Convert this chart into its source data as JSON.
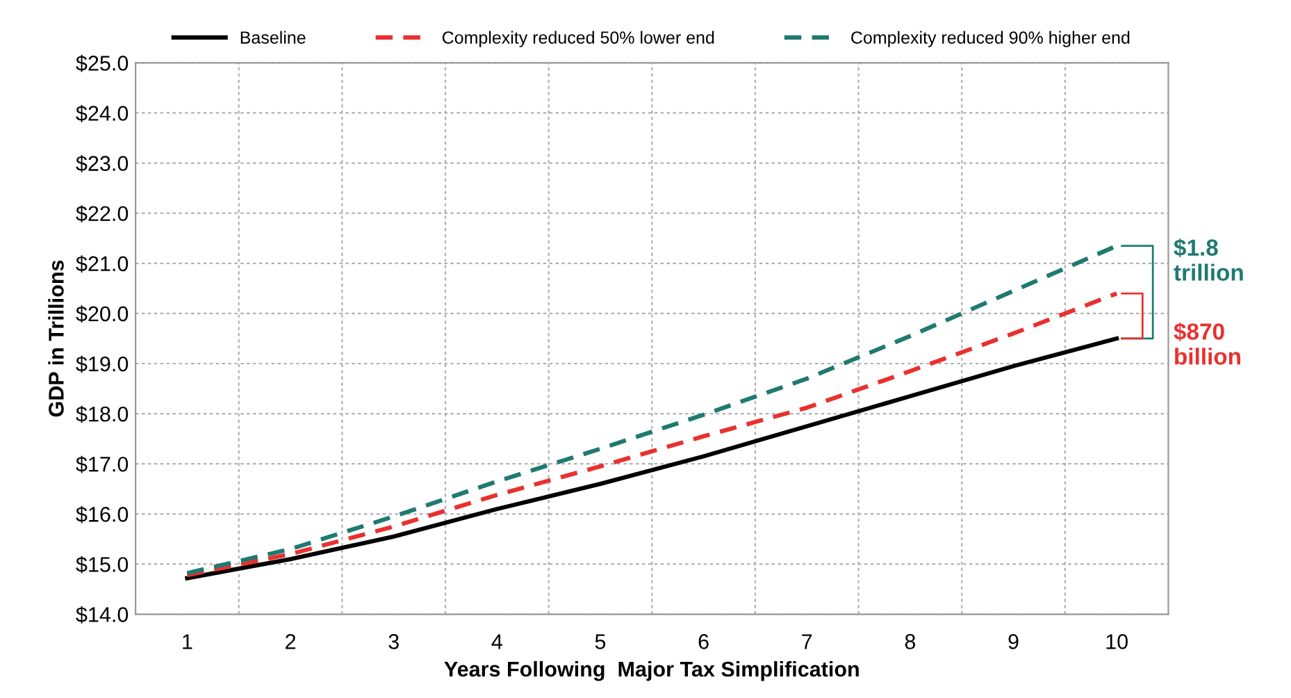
{
  "chart_data": {
    "type": "line",
    "xlabel": "Years Following  Major Tax Simplification",
    "ylabel": "GDP in Trillions",
    "categories": [
      "1",
      "2",
      "3",
      "4",
      "5",
      "6",
      "7",
      "8",
      "9",
      "10"
    ],
    "series": [
      {
        "name": "Baseline",
        "color": "#000000",
        "line_style": "solid",
        "values": [
          14.72,
          15.1,
          15.55,
          16.1,
          16.6,
          17.15,
          17.75,
          18.35,
          18.95,
          19.5
        ]
      },
      {
        "name": "Complexity reduced 50% lower end",
        "color": "#e8312f",
        "line_style": "dashed",
        "values": [
          14.78,
          15.2,
          15.75,
          16.38,
          16.95,
          17.55,
          18.12,
          18.85,
          19.6,
          20.4
        ]
      },
      {
        "name": "Complexity reduced 90% higher end",
        "color": "#1f7a70",
        "line_style": "dashed",
        "values": [
          14.82,
          15.3,
          15.95,
          16.65,
          17.3,
          17.98,
          18.7,
          19.55,
          20.45,
          21.35
        ]
      }
    ],
    "ylim": [
      14.0,
      25.0
    ],
    "yticks": [
      {
        "value": 14,
        "label": "$14.0"
      },
      {
        "value": 15,
        "label": "$15.0"
      },
      {
        "value": 16,
        "label": "$16.0"
      },
      {
        "value": 17,
        "label": "$17.0"
      },
      {
        "value": 18,
        "label": "$18.0"
      },
      {
        "value": 19,
        "label": "$19.0"
      },
      {
        "value": 20,
        "label": "$20.0"
      },
      {
        "value": 21,
        "label": "$21.0"
      },
      {
        "value": 22,
        "label": "$22.0"
      },
      {
        "value": 23,
        "label": "$23.0"
      },
      {
        "value": 24,
        "label": "$24.0"
      },
      {
        "value": 25,
        "label": "$25.0"
      }
    ],
    "annotations": [
      "$1.8\ntrillion",
      "$870\nbillion"
    ],
    "grid": true,
    "legend": "top",
    "marker": "none"
  }
}
